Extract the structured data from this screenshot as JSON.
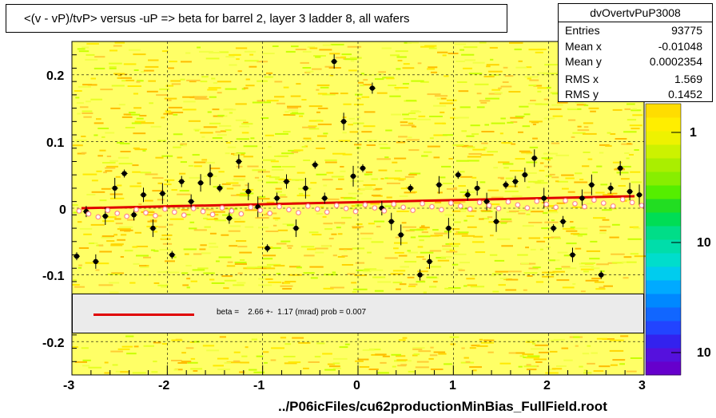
{
  "title": "<(v - vP)/tvP> versus  -uP => beta for barrel 2, layer 3 ladder 8, all wafers",
  "stats": {
    "name": "dvOvertvPuP3008",
    "rows": [
      {
        "k": "Entries",
        "v": "93775"
      },
      {
        "k": "Mean x",
        "v": "-0.01048"
      },
      {
        "k": "Mean y",
        "v": "0.0002354"
      },
      {
        "k": "RMS x",
        "v": "1.569"
      },
      {
        "k": "RMS y",
        "v": "0.1452"
      }
    ]
  },
  "fit_text": "beta =    2.66 +-  1.17 (mrad) prob = 0.007",
  "x_title": "../P06icFiles/cu62productionMinBias_FullField.root",
  "colors": {
    "fit": "#e00000",
    "profile": "#000000",
    "alt_marker": "#ff8888",
    "frame_fill": "#ffffff"
  },
  "chart_data": {
    "type": "scatter",
    "xlim": [
      -3,
      3
    ],
    "ylim": [
      -0.25,
      0.25
    ],
    "xticks": [
      "-3",
      "-2",
      "-1",
      "0",
      "1",
      "2",
      "3"
    ],
    "yticks": [
      "0.2",
      "0.1",
      "0",
      "-0.1",
      "-0.2"
    ],
    "z_ticks": [
      "1",
      "10",
      "10"
    ],
    "grid": true,
    "fit_line": {
      "x": [
        -2.9,
        2.9
      ],
      "y": [
        0.0,
        0.018
      ]
    },
    "series": [
      {
        "x": [
          -2.95,
          -2.85,
          -2.75,
          -2.65,
          -2.55,
          -2.45,
          -2.35,
          -2.25,
          -2.15,
          -2.05,
          -1.95,
          -1.85,
          -1.75,
          -1.65,
          -1.55,
          -1.45,
          -1.35,
          -1.25,
          -1.15,
          -1.05,
          -0.95,
          -0.85,
          -0.75,
          -0.65,
          -0.55,
          -0.45,
          -0.35,
          -0.25,
          -0.15,
          -0.05,
          0.05,
          0.15,
          0.25,
          0.35,
          0.45,
          0.55,
          0.65,
          0.75,
          0.85,
          0.95,
          1.05,
          1.15,
          1.25,
          1.35,
          1.45,
          1.55,
          1.65,
          1.75,
          1.85,
          1.95,
          2.05,
          2.15,
          2.25,
          2.35,
          2.45,
          2.55,
          2.65,
          2.75,
          2.85,
          2.95
        ],
        "y": [
          -0.072,
          -0.005,
          -0.08,
          -0.012,
          0.03,
          0.052,
          -0.01,
          0.02,
          -0.03,
          0.022,
          -0.07,
          0.04,
          0.01,
          0.038,
          0.05,
          0.03,
          -0.015,
          0.07,
          0.025,
          0.002,
          -0.06,
          0.015,
          0.04,
          -0.03,
          0.03,
          0.065,
          0.015,
          0.22,
          0.13,
          0.048,
          0.06,
          0.18,
          0.0,
          -0.02,
          -0.04,
          0.03,
          -0.1,
          -0.08,
          0.035,
          -0.03,
          0.05,
          0.02,
          0.03,
          0.01,
          -0.02,
          0.035,
          0.04,
          0.05,
          0.075,
          0.015,
          -0.03,
          -0.02,
          -0.07,
          0.015,
          0.035,
          -0.1,
          0.03,
          0.06,
          0.025,
          0.02
        ]
      }
    ]
  }
}
